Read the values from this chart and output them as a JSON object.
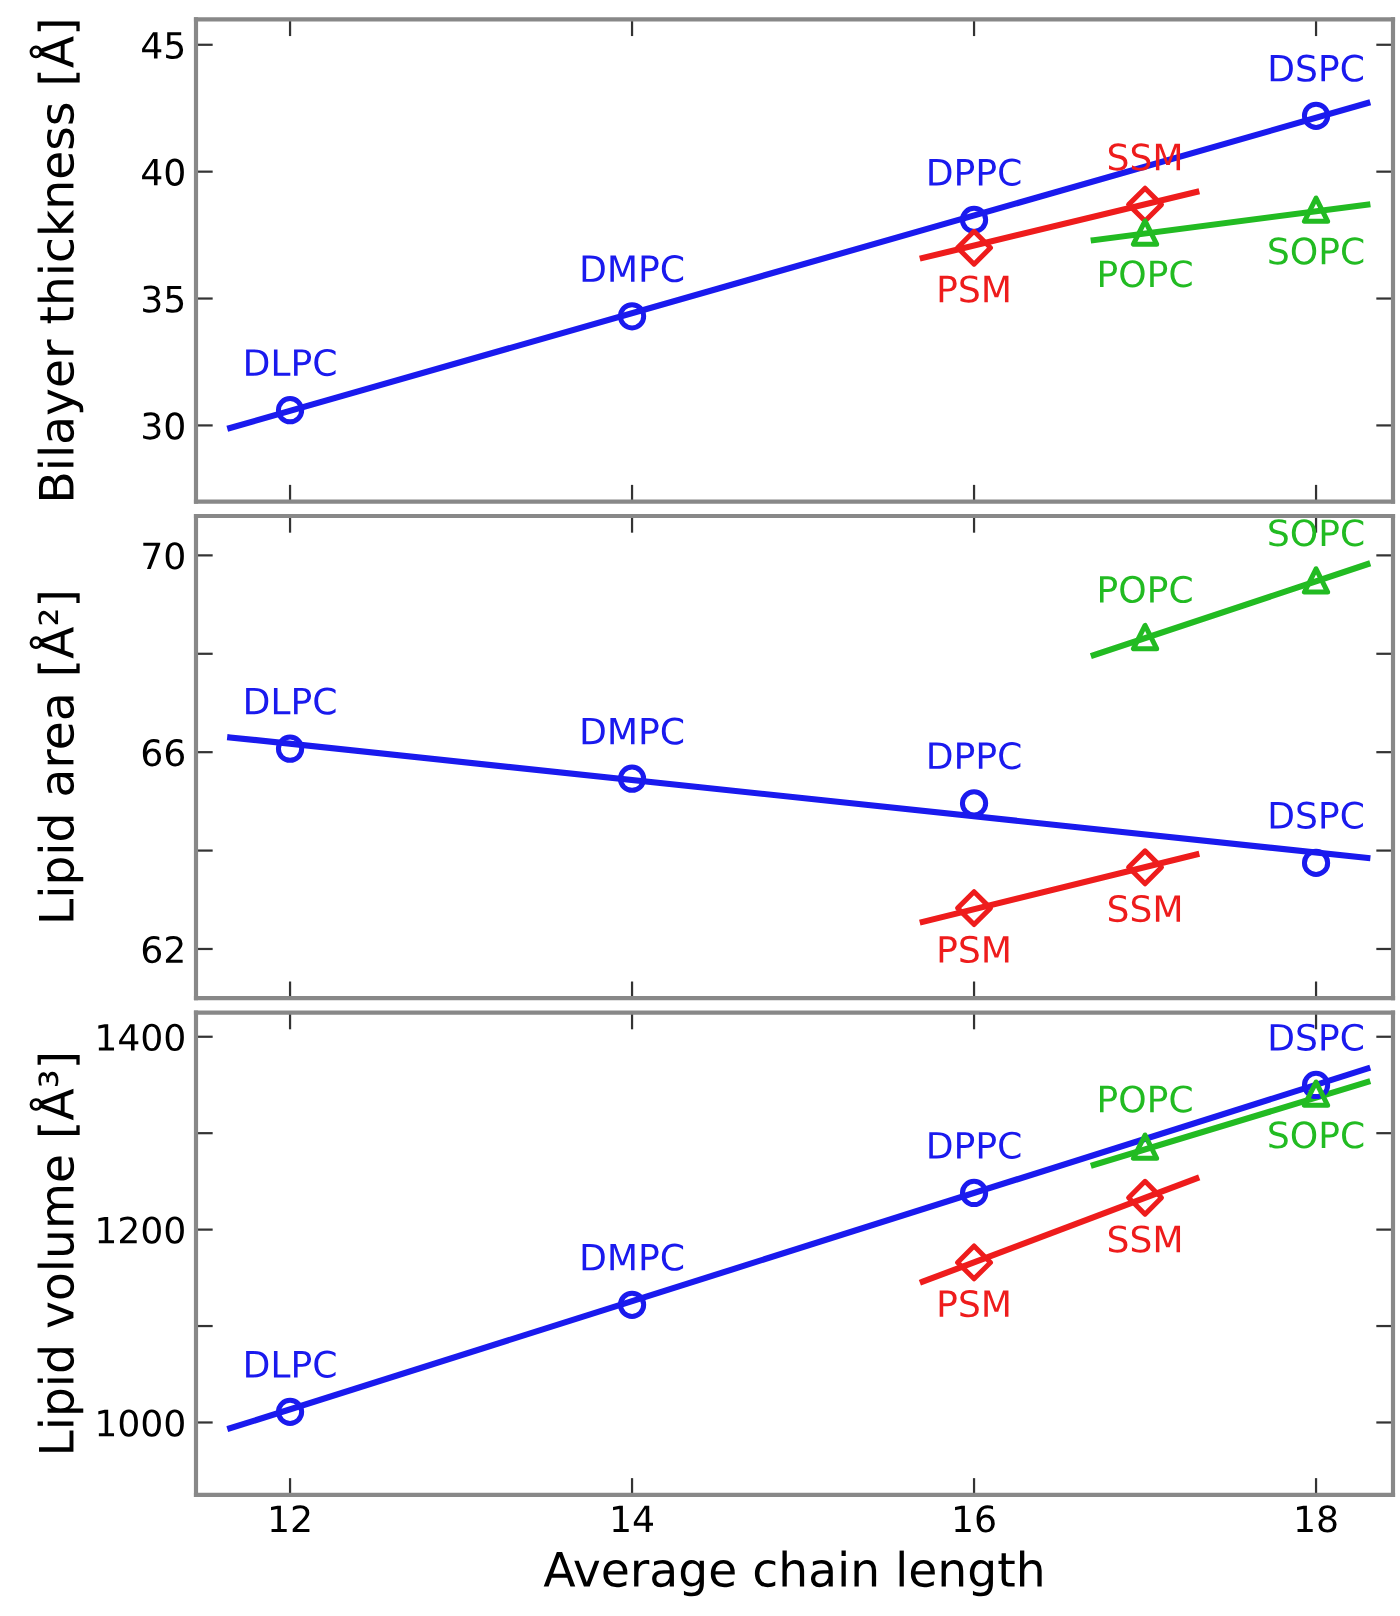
{
  "chart_data": [
    {
      "type": "scatter",
      "ylabel": "Bilayer thickness [Å]",
      "xlim": [
        11.45,
        18.45
      ],
      "xticks": [
        12,
        14,
        16,
        18
      ],
      "ylim": [
        27,
        46
      ],
      "yticks": [
        30,
        35,
        40,
        45
      ],
      "tick_labels": "y",
      "grid": false,
      "series": [
        {
          "type": "scatter",
          "marker": "circle",
          "color": "#1a1aee",
          "x": [
            12,
            14,
            16,
            18
          ],
          "values": [
            30.6,
            34.3,
            38.1,
            42.2
          ]
        },
        {
          "type": "scatter",
          "marker": "diamond",
          "color": "#ee1c1c",
          "x": [
            16,
            17
          ],
          "values": [
            37.0,
            38.7
          ]
        },
        {
          "type": "scatter",
          "marker": "triangle",
          "color": "#22bb22",
          "x": [
            17,
            18
          ],
          "values": [
            37.6,
            38.5
          ]
        },
        {
          "type": "line",
          "color": "#1a1aee",
          "x": [
            11.65,
            18.3
          ],
          "values": [
            29.9,
            42.7
          ]
        },
        {
          "type": "line",
          "color": "#ee1c1c",
          "x": [
            15.7,
            17.3
          ],
          "values": [
            36.6,
            39.2
          ]
        },
        {
          "type": "line",
          "color": "#22bb22",
          "x": [
            16.7,
            18.3
          ],
          "values": [
            37.3,
            38.7
          ]
        }
      ],
      "annotations": [
        {
          "text": "DLPC",
          "x": 12,
          "y": 30.6
        },
        {
          "text": "DMPC",
          "x": 14,
          "y": 34.3
        },
        {
          "text": "DPPC",
          "x": 16,
          "y": 38.1
        },
        {
          "text": "DSPC",
          "x": 18,
          "y": 42.2
        },
        {
          "text": "PSM",
          "x": 16,
          "y": 37.0
        },
        {
          "text": "SSM",
          "x": 17,
          "y": 38.7
        },
        {
          "text": "POPC",
          "x": 17,
          "y": 37.6
        },
        {
          "text": "SOPC",
          "x": 18,
          "y": 38.5
        }
      ]
    },
    {
      "type": "scatter",
      "ylabel": "Lipid area [Å²]",
      "xlim": [
        11.45,
        18.45
      ],
      "xticks": [
        12,
        14,
        16,
        18
      ],
      "ylim": [
        61,
        70.8
      ],
      "yticks": [
        62,
        {
          "value": 64,
          "label": null
        },
        66,
        {
          "value": 68,
          "label": null
        },
        70
      ],
      "tick_labels": "y",
      "grid": false,
      "series": [
        {
          "type": "scatter",
          "marker": "circle",
          "color": "#1a1aee",
          "x": [
            12,
            14,
            16,
            18
          ],
          "values": [
            66.07,
            65.46,
            64.96,
            63.75
          ]
        },
        {
          "type": "scatter",
          "marker": "diamond",
          "color": "#ee1c1c",
          "x": [
            16,
            17
          ],
          "values": [
            62.83,
            63.66
          ]
        },
        {
          "type": "scatter",
          "marker": "triangle",
          "color": "#22bb22",
          "x": [
            17,
            18
          ],
          "values": [
            68.34,
            69.49
          ]
        },
        {
          "type": "line",
          "color": "#1a1aee",
          "x": [
            11.65,
            18.3
          ],
          "values": [
            66.3,
            63.85
          ]
        },
        {
          "type": "line",
          "color": "#ee1c1c",
          "x": [
            15.7,
            17.3
          ],
          "values": [
            62.55,
            63.92
          ]
        },
        {
          "type": "line",
          "color": "#22bb22",
          "x": [
            16.7,
            18.3
          ],
          "values": [
            67.97,
            69.82
          ]
        }
      ],
      "annotations": [
        {
          "text": "DLPC",
          "x": 12,
          "y": 66.07
        },
        {
          "text": "DMPC",
          "x": 14,
          "y": 65.46
        },
        {
          "text": "DPPC",
          "x": 16,
          "y": 64.96
        },
        {
          "text": "DSPC",
          "x": 18,
          "y": 63.75
        },
        {
          "text": "PSM",
          "x": 16,
          "y": 62.83
        },
        {
          "text": "SSM",
          "x": 17,
          "y": 63.66
        },
        {
          "text": "POPC",
          "x": 17,
          "y": 68.34
        },
        {
          "text": "SOPC",
          "x": 18,
          "y": 69.49
        }
      ]
    },
    {
      "type": "scatter",
      "xlabel": "Average chain length",
      "ylabel": "Lipid volume [Å³]",
      "xlim": [
        11.45,
        18.45
      ],
      "xticks": [
        12,
        14,
        16,
        18
      ],
      "ylim": [
        925,
        1425
      ],
      "yticks": [
        1000,
        {
          "value": 1100,
          "label": null
        },
        1200,
        {
          "value": 1300,
          "label": null
        },
        1400
      ],
      "grid": false,
      "series": [
        {
          "type": "scatter",
          "marker": "circle",
          "color": "#1a1aee",
          "x": [
            12,
            14,
            16,
            18
          ],
          "values": [
            1011,
            1122,
            1238,
            1350
          ]
        },
        {
          "type": "scatter",
          "marker": "diamond",
          "color": "#ee1c1c",
          "x": [
            16,
            17
          ],
          "values": [
            1166,
            1233
          ]
        },
        {
          "type": "scatter",
          "marker": "triangle",
          "color": "#22bb22",
          "x": [
            17,
            18
          ],
          "values": [
            1286,
            1341
          ]
        },
        {
          "type": "line",
          "color": "#1a1aee",
          "x": [
            11.65,
            18.3
          ],
          "values": [
            994,
            1367
          ]
        },
        {
          "type": "line",
          "color": "#ee1c1c",
          "x": [
            15.7,
            17.3
          ],
          "values": [
            1146,
            1253
          ]
        },
        {
          "type": "line",
          "color": "#22bb22",
          "x": [
            16.7,
            18.3
          ],
          "values": [
            1267,
            1353
          ]
        }
      ],
      "annotations": [
        {
          "text": "DLPC",
          "x": 12,
          "y": 1011
        },
        {
          "text": "DMPC",
          "x": 14,
          "y": 1122
        },
        {
          "text": "DPPC",
          "x": 16,
          "y": 1238
        },
        {
          "text": "DSPC",
          "x": 18,
          "y": 1350
        },
        {
          "text": "PSM",
          "x": 16,
          "y": 1166
        },
        {
          "text": "SSM",
          "x": 17,
          "y": 1233
        },
        {
          "text": "POPC",
          "x": 17,
          "y": 1286
        },
        {
          "text": "SOPC",
          "x": 18,
          "y": 1341
        }
      ]
    }
  ]
}
